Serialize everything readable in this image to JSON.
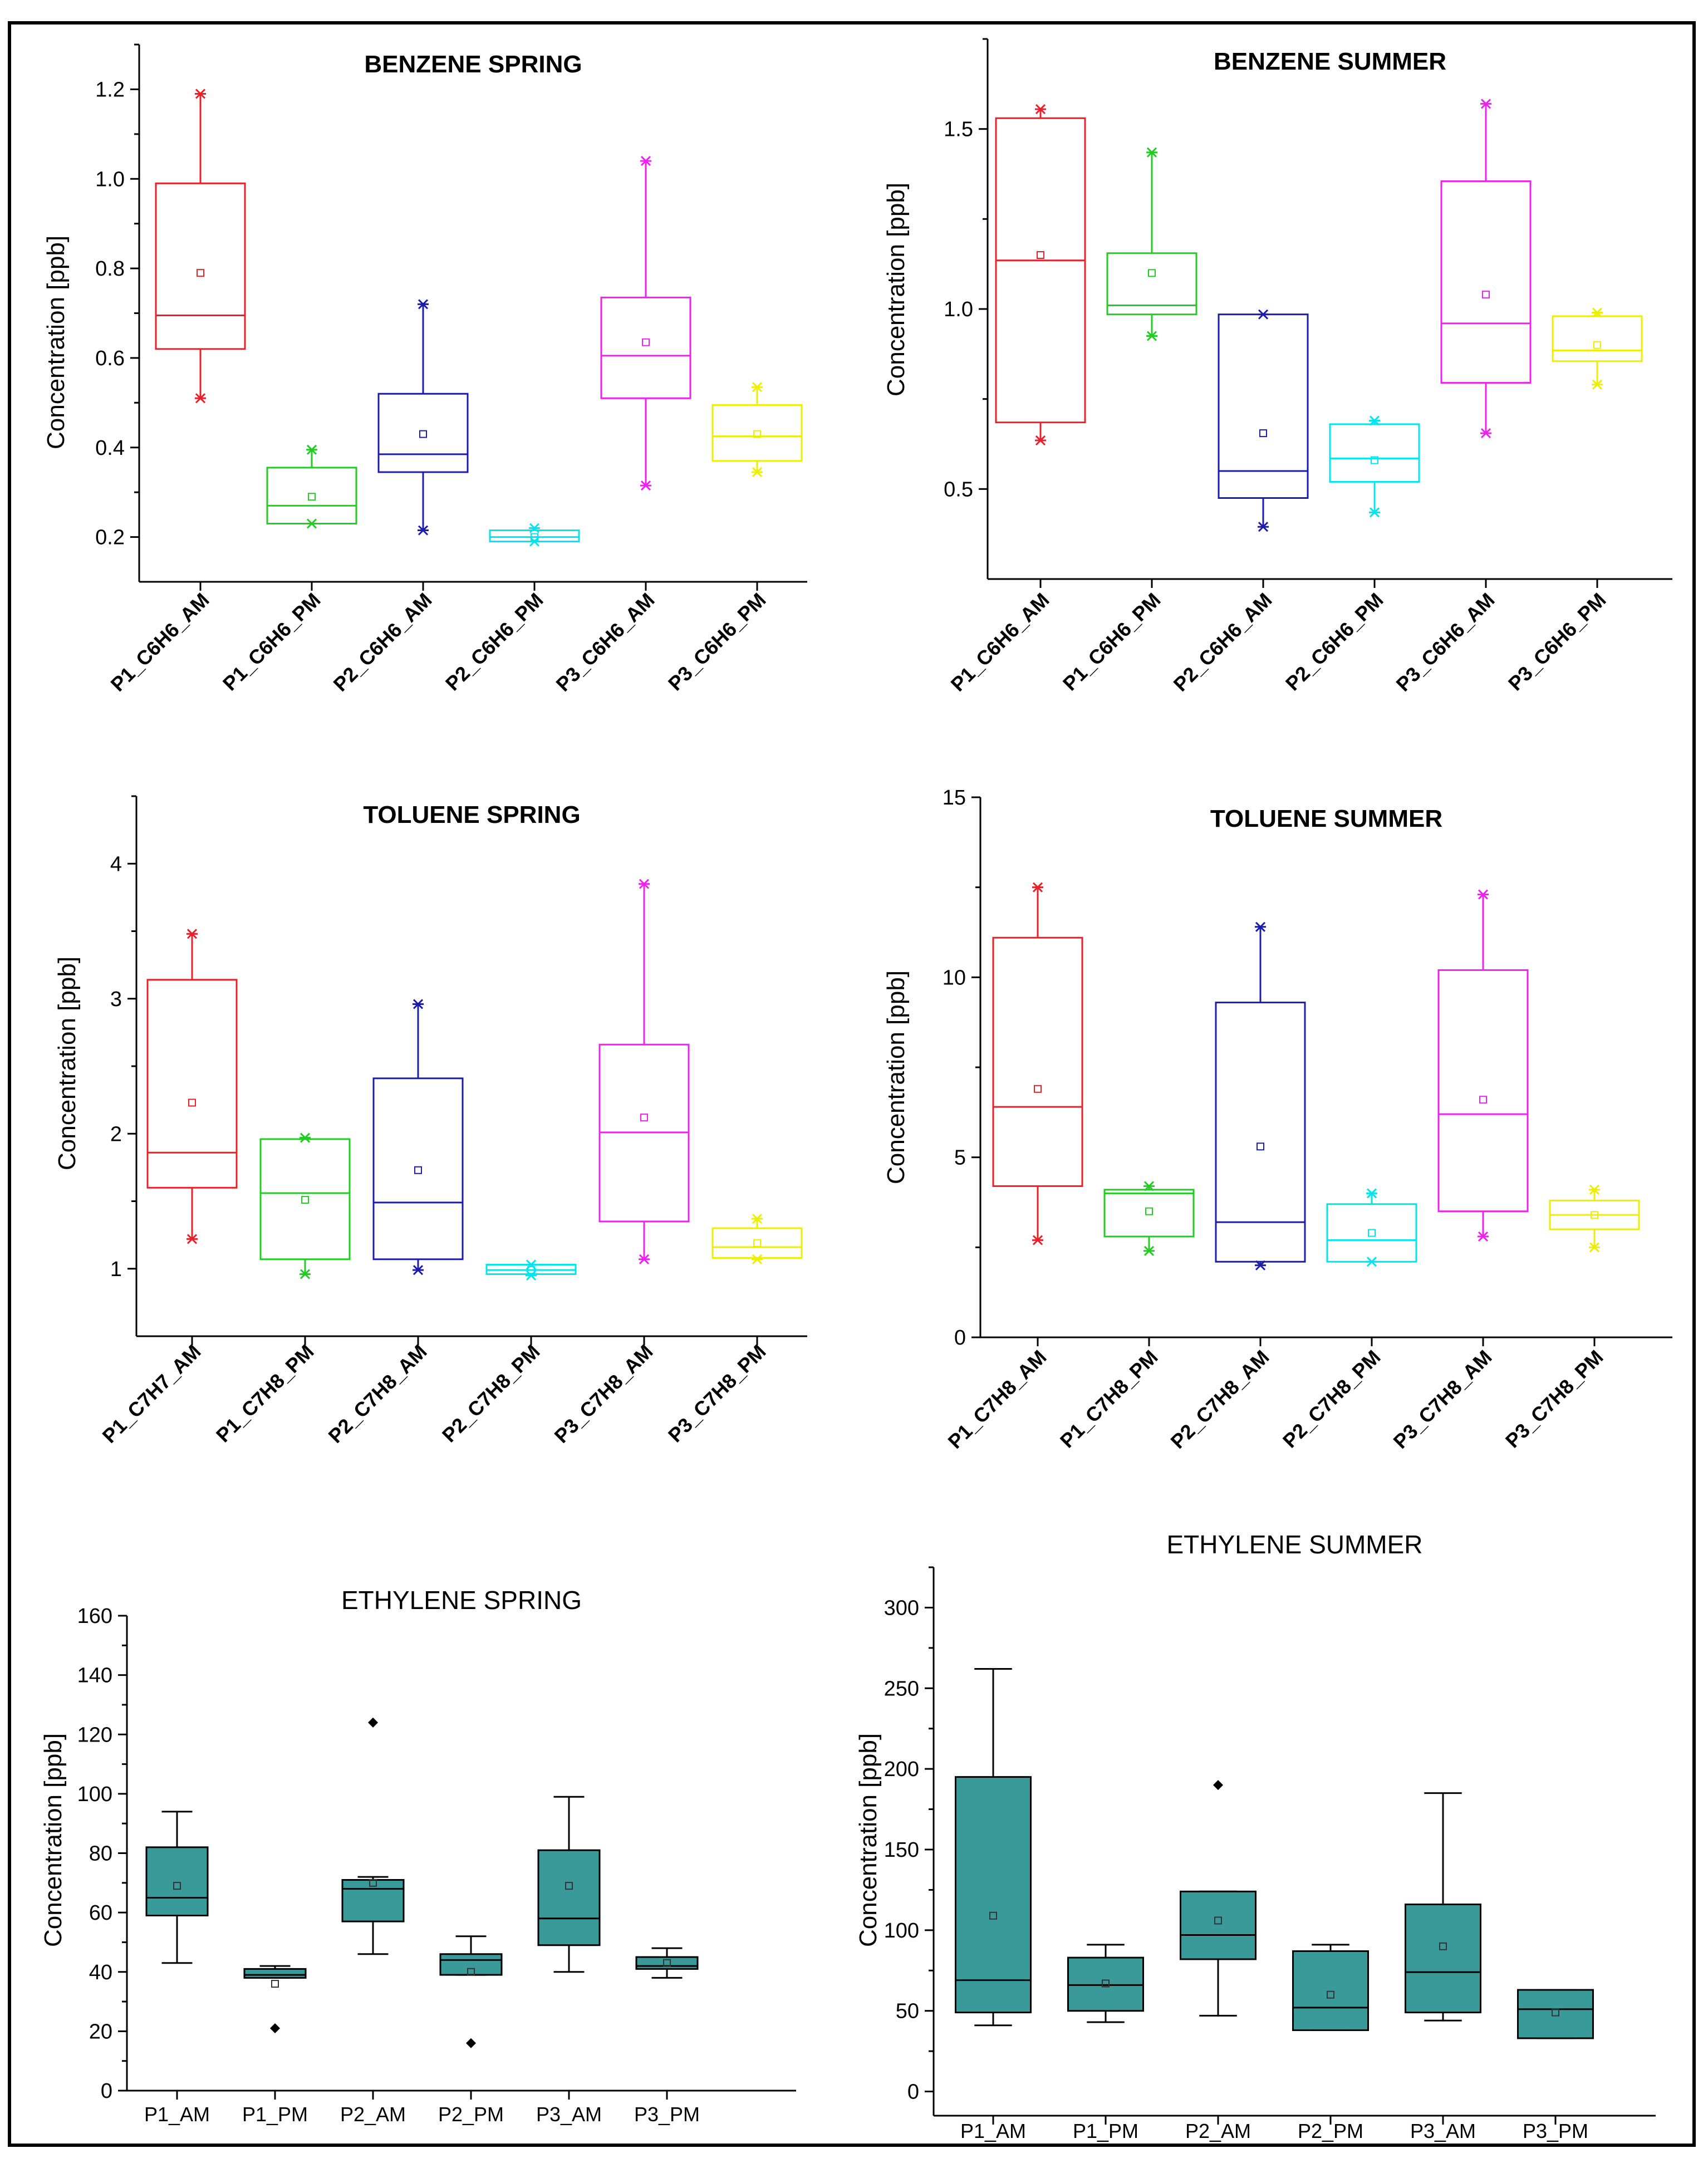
{
  "chart_data": [
    {
      "id": "benzene_spring",
      "type": "box",
      "title": "BENZENE SPRING",
      "ylabel": "Concentration [ppb]",
      "ylim": [
        0.1,
        1.3
      ],
      "yticks": [
        0.2,
        0.4,
        0.6,
        0.8,
        1.0,
        1.2
      ],
      "ytick_labels": [
        "0.2",
        "0.4",
        "0.6",
        "0.8",
        "1.0",
        "1.2"
      ],
      "categories": [
        "P1_C6H6_AM",
        "P1_C6H6_PM",
        "P2_C6H6_AM",
        "P2_C6H6_PM",
        "P3_C6H6_AM",
        "P3_C6H6_PM"
      ],
      "boxes": [
        {
          "q1": 0.62,
          "median": 0.695,
          "q3": 0.99,
          "whisker_low": 0.51,
          "whisker_high": 1.19,
          "mean": 0.79,
          "color": "#e8202a"
        },
        {
          "q1": 0.23,
          "median": 0.27,
          "q3": 0.355,
          "whisker_low": 0.23,
          "whisker_high": 0.395,
          "mean": 0.29,
          "color": "#22cc22"
        },
        {
          "q1": 0.345,
          "median": 0.385,
          "q3": 0.52,
          "whisker_low": 0.215,
          "whisker_high": 0.72,
          "mean": 0.43,
          "color": "#1c1caa"
        },
        {
          "q1": 0.19,
          "median": 0.2,
          "q3": 0.215,
          "whisker_low": 0.19,
          "whisker_high": 0.22,
          "mean": 0.2,
          "color": "#00e5ee"
        },
        {
          "q1": 0.51,
          "median": 0.605,
          "q3": 0.735,
          "whisker_low": 0.315,
          "whisker_high": 1.04,
          "mean": 0.635,
          "color": "#ee22ee"
        },
        {
          "q1": 0.37,
          "median": 0.425,
          "q3": 0.495,
          "whisker_low": 0.345,
          "whisker_high": 0.535,
          "mean": 0.43,
          "color": "#eeee00"
        }
      ]
    },
    {
      "id": "benzene_summer",
      "type": "box",
      "title": "BENZENE SUMMER",
      "ylabel": "Concentration [ppb]",
      "ylim": [
        0.25,
        1.75
      ],
      "yticks": [
        0.5,
        1.0,
        1.5
      ],
      "ytick_labels": [
        "0.5",
        "1.0",
        "1.5"
      ],
      "categories": [
        "P1_C6H6_AM",
        "P1_C6H6_PM",
        "P2_C6H6_AM",
        "P2_C6H6_PM",
        "P3_C6H6_AM",
        "P3_C6H6_PM"
      ],
      "boxes": [
        {
          "q1": 0.685,
          "median": 1.135,
          "q3": 1.53,
          "whisker_low": 0.635,
          "whisker_high": 1.555,
          "mean": 1.15,
          "color": "#e8202a"
        },
        {
          "q1": 0.985,
          "median": 1.01,
          "q3": 1.155,
          "whisker_low": 0.925,
          "whisker_high": 1.435,
          "mean": 1.1,
          "color": "#22cc22"
        },
        {
          "q1": 0.475,
          "median": 0.55,
          "q3": 0.985,
          "whisker_low": 0.395,
          "whisker_high": 0.985,
          "mean": 0.655,
          "color": "#1c1caa"
        },
        {
          "q1": 0.52,
          "median": 0.585,
          "q3": 0.68,
          "whisker_low": 0.435,
          "whisker_high": 0.69,
          "mean": 0.58,
          "color": "#00e5ee"
        },
        {
          "q1": 0.795,
          "median": 0.96,
          "q3": 1.355,
          "whisker_low": 0.655,
          "whisker_high": 1.57,
          "mean": 1.04,
          "color": "#ee22ee"
        },
        {
          "q1": 0.855,
          "median": 0.885,
          "q3": 0.98,
          "whisker_low": 0.79,
          "whisker_high": 0.99,
          "mean": 0.9,
          "color": "#eeee00"
        }
      ]
    },
    {
      "id": "toluene_spring",
      "type": "box",
      "title": "TOLUENE SPRING",
      "ylabel": "Concentration [ppb]",
      "ylim": [
        0.5,
        4.5
      ],
      "yticks": [
        1,
        2,
        3,
        4
      ],
      "ytick_labels": [
        "1",
        "2",
        "3",
        "4"
      ],
      "categories": [
        "P1_C7H7_AM",
        "P1_C7H8_PM",
        "P2_C7H8_AM",
        "P2_C7H8_PM",
        "P3_C7H8_AM",
        "P3_C7H8_PM"
      ],
      "boxes": [
        {
          "q1": 1.6,
          "median": 1.86,
          "q3": 3.14,
          "whisker_low": 1.22,
          "whisker_high": 3.48,
          "mean": 2.23,
          "color": "#e8202a"
        },
        {
          "q1": 1.07,
          "median": 1.56,
          "q3": 1.96,
          "whisker_low": 0.96,
          "whisker_high": 1.97,
          "mean": 1.51,
          "color": "#22cc22"
        },
        {
          "q1": 1.07,
          "median": 1.49,
          "q3": 2.41,
          "whisker_low": 0.99,
          "whisker_high": 2.96,
          "mean": 1.73,
          "color": "#1c1caa"
        },
        {
          "q1": 0.96,
          "median": 0.99,
          "q3": 1.03,
          "whisker_low": 0.95,
          "whisker_high": 1.03,
          "mean": 0.99,
          "color": "#00e5ee"
        },
        {
          "q1": 1.35,
          "median": 2.01,
          "q3": 2.66,
          "whisker_low": 1.07,
          "whisker_high": 3.85,
          "mean": 2.12,
          "color": "#ee22ee"
        },
        {
          "q1": 1.08,
          "median": 1.16,
          "q3": 1.3,
          "whisker_low": 1.07,
          "whisker_high": 1.37,
          "mean": 1.19,
          "color": "#eeee00"
        }
      ]
    },
    {
      "id": "toluene_summer",
      "type": "box",
      "title": "TOLUENE SUMMER",
      "ylabel": "Concentration [ppb]",
      "ylim": [
        0,
        15
      ],
      "yticks": [
        0,
        5,
        10,
        15
      ],
      "ytick_labels": [
        "0",
        "5",
        "10",
        "15"
      ],
      "categories": [
        "P1_C7H8_AM",
        "P1_C7H8_PM",
        "P2_C7H8_AM",
        "P2_C7H8_PM",
        "P3_C7H8_AM",
        "P3_C7H8_PM"
      ],
      "boxes": [
        {
          "q1": 4.2,
          "median": 6.4,
          "q3": 11.1,
          "whisker_low": 2.7,
          "whisker_high": 12.5,
          "mean": 6.9,
          "color": "#e8202a"
        },
        {
          "q1": 2.8,
          "median": 4.0,
          "q3": 4.1,
          "whisker_low": 2.4,
          "whisker_high": 4.2,
          "mean": 3.5,
          "color": "#22cc22"
        },
        {
          "q1": 2.1,
          "median": 3.2,
          "q3": 9.3,
          "whisker_low": 2.0,
          "whisker_high": 11.4,
          "mean": 5.3,
          "color": "#1c1caa"
        },
        {
          "q1": 2.1,
          "median": 2.7,
          "q3": 3.7,
          "whisker_low": 2.1,
          "whisker_high": 4.0,
          "mean": 2.9,
          "color": "#00e5ee"
        },
        {
          "q1": 3.5,
          "median": 6.2,
          "q3": 10.2,
          "whisker_low": 2.8,
          "whisker_high": 12.3,
          "mean": 6.6,
          "color": "#ee22ee"
        },
        {
          "q1": 3.0,
          "median": 3.4,
          "q3": 3.8,
          "whisker_low": 2.5,
          "whisker_high": 4.1,
          "mean": 3.4,
          "color": "#eeee00"
        }
      ]
    },
    {
      "id": "ethylene_spring",
      "type": "box",
      "title": "ETHYLENE SPRING",
      "ylabel": "Concentration [ppb]",
      "ylim": [
        0,
        160
      ],
      "yticks": [
        0,
        20,
        40,
        60,
        80,
        100,
        120,
        140,
        160
      ],
      "ytick_labels": [
        "0",
        "20",
        "40",
        "60",
        "80",
        "100",
        "120",
        "140",
        "160"
      ],
      "categories": [
        "P1_AM",
        "P1_PM",
        "P2_AM",
        "P2_PM",
        "P3_AM",
        "P3_PM"
      ],
      "boxes": [
        {
          "q1": 59,
          "median": 65,
          "q3": 82,
          "whisker_low": 43,
          "whisker_high": 94,
          "mean": 69,
          "outliers": [],
          "color": "#3a9a9a"
        },
        {
          "q1": 38,
          "median": 39,
          "q3": 41,
          "whisker_low": 38,
          "whisker_high": 42,
          "mean": 36,
          "outliers": [
            21
          ],
          "color": "#3a9a9a"
        },
        {
          "q1": 57,
          "median": 68,
          "q3": 71,
          "whisker_low": 46,
          "whisker_high": 72,
          "mean": 70,
          "outliers": [
            124
          ],
          "color": "#3a9a9a"
        },
        {
          "q1": 39,
          "median": 44,
          "q3": 46,
          "whisker_low": 39,
          "whisker_high": 52,
          "mean": 40,
          "outliers": [
            16
          ],
          "color": "#3a9a9a"
        },
        {
          "q1": 49,
          "median": 58,
          "q3": 81,
          "whisker_low": 40,
          "whisker_high": 99,
          "mean": 69,
          "outliers": [],
          "color": "#3a9a9a"
        },
        {
          "q1": 41,
          "median": 42,
          "q3": 45,
          "whisker_low": 38,
          "whisker_high": 48,
          "mean": 43,
          "outliers": [],
          "color": "#3a9a9a"
        }
      ]
    },
    {
      "id": "ethylene_summer",
      "type": "box",
      "title": "ETHYLENE SUMMER",
      "ylabel": "Concentration [ppb]",
      "ylim": [
        -15,
        325
      ],
      "yticks": [
        0,
        50,
        100,
        150,
        200,
        250,
        300
      ],
      "ytick_labels": [
        "0",
        "50",
        "100",
        "150",
        "200",
        "250",
        "300"
      ],
      "categories": [
        "P1_AM",
        "P1_PM",
        "P2_AM",
        "P2_PM",
        "P3_AM",
        "P3_PM"
      ],
      "boxes": [
        {
          "q1": 49,
          "median": 69,
          "q3": 195,
          "whisker_low": 41,
          "whisker_high": 262,
          "mean": 109,
          "outliers": [],
          "color": "#3a9a9a"
        },
        {
          "q1": 50,
          "median": 66,
          "q3": 83,
          "whisker_low": 43,
          "whisker_high": 91,
          "mean": 67,
          "outliers": [],
          "color": "#3a9a9a"
        },
        {
          "q1": 82,
          "median": 97,
          "q3": 124,
          "whisker_low": 47,
          "whisker_high": 124,
          "mean": 106,
          "outliers": [
            190
          ],
          "color": "#3a9a9a"
        },
        {
          "q1": 38,
          "median": 52,
          "q3": 87,
          "whisker_low": 38,
          "whisker_high": 91,
          "mean": 60,
          "outliers": [],
          "color": "#3a9a9a"
        },
        {
          "q1": 49,
          "median": 74,
          "q3": 116,
          "whisker_low": 44,
          "whisker_high": 185,
          "mean": 90,
          "outliers": [],
          "color": "#3a9a9a"
        },
        {
          "q1": 33,
          "median": 51,
          "q3": 63,
          "whisker_low": 33,
          "whisker_high": 63,
          "mean": 49,
          "outliers": [],
          "color": "#3a9a9a"
        }
      ]
    }
  ]
}
